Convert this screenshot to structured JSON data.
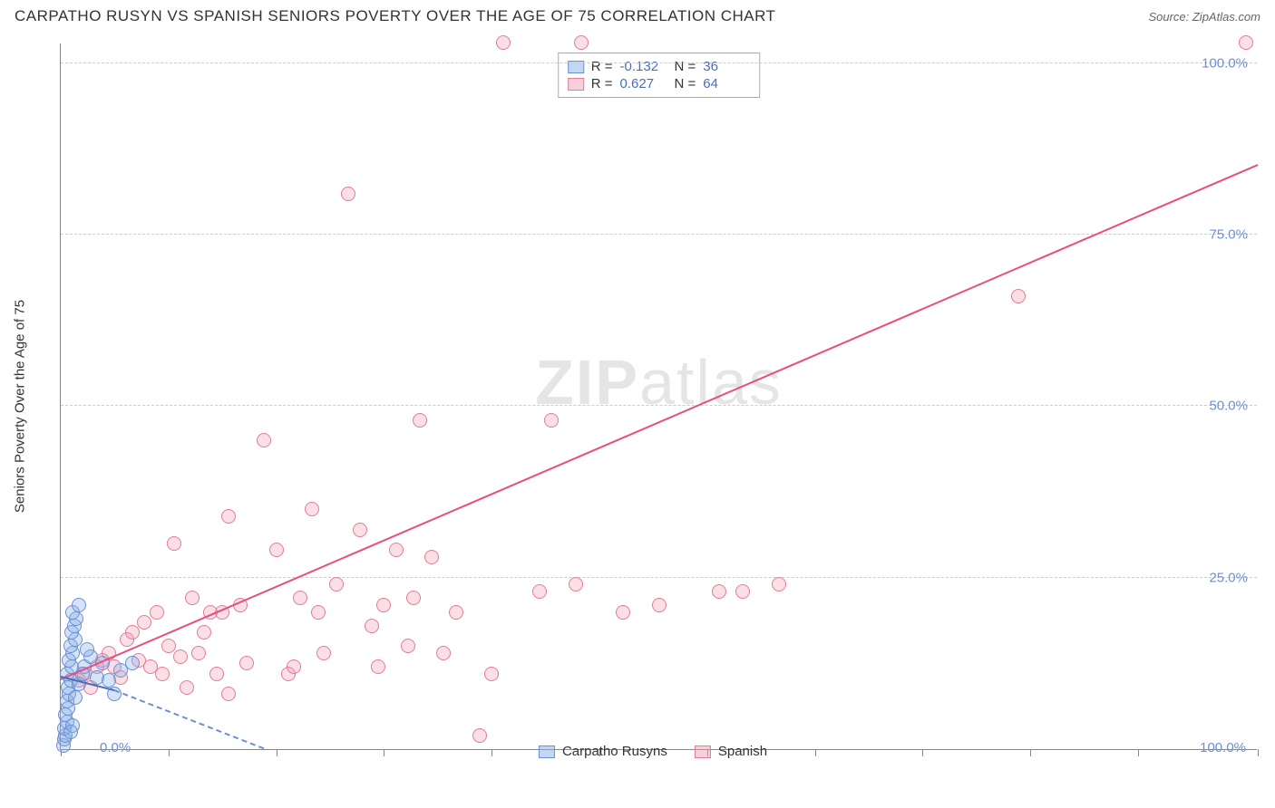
{
  "header": {
    "title": "CARPATHO RUSYN VS SPANISH SENIORS POVERTY OVER THE AGE OF 75 CORRELATION CHART",
    "source": "Source: ZipAtlas.com"
  },
  "chart": {
    "type": "scatter",
    "ylabel": "Seniors Poverty Over the Age of 75",
    "xlim": [
      0,
      100
    ],
    "ylim": [
      0,
      103
    ],
    "xtick_positions": [
      0,
      9,
      18,
      27,
      36,
      45,
      54,
      63,
      72,
      81,
      90,
      100
    ],
    "xtick_label_left": "0.0%",
    "xtick_label_right": "100.0%",
    "yticks": [
      25,
      50,
      75,
      100
    ],
    "ytick_labels": [
      "25.0%",
      "50.0%",
      "75.0%",
      "100.0%"
    ],
    "background_color": "#ffffff",
    "grid_color": "#cccccc",
    "axis_color": "#888888",
    "watermark": {
      "text_bold": "ZIP",
      "text_light": "atlas"
    },
    "series": {
      "carpatho": {
        "label": "Carpatho Rusyns",
        "marker_color_fill": "rgba(135,175,230,0.35)",
        "marker_color_stroke": "#6b8fd6",
        "marker_size": 16,
        "r": "-0.132",
        "n": "36",
        "trend": {
          "x1": 0,
          "y1": 10.5,
          "x2": 4.5,
          "y2": 8.5,
          "dash_to_x": 17,
          "dash_to_y": 0
        },
        "points": [
          {
            "x": 0.2,
            "y": 0.5
          },
          {
            "x": 0.3,
            "y": 1.5
          },
          {
            "x": 0.4,
            "y": 2.0
          },
          {
            "x": 0.3,
            "y": 3.0
          },
          {
            "x": 0.5,
            "y": 4.0
          },
          {
            "x": 0.4,
            "y": 5.0
          },
          {
            "x": 0.6,
            "y": 6.0
          },
          {
            "x": 0.5,
            "y": 7.0
          },
          {
            "x": 0.7,
            "y": 8.0
          },
          {
            "x": 0.6,
            "y": 9.0
          },
          {
            "x": 0.8,
            "y": 10.0
          },
          {
            "x": 0.5,
            "y": 11.0
          },
          {
            "x": 0.9,
            "y": 12.0
          },
          {
            "x": 0.7,
            "y": 13.0
          },
          {
            "x": 1.0,
            "y": 14.0
          },
          {
            "x": 0.8,
            "y": 15.0
          },
          {
            "x": 1.2,
            "y": 16.0
          },
          {
            "x": 0.9,
            "y": 17.0
          },
          {
            "x": 1.1,
            "y": 18.0
          },
          {
            "x": 1.3,
            "y": 19.0
          },
          {
            "x": 1.0,
            "y": 20.0
          },
          {
            "x": 1.5,
            "y": 21.0
          },
          {
            "x": 1.2,
            "y": 7.5
          },
          {
            "x": 2.0,
            "y": 12.0
          },
          {
            "x": 1.5,
            "y": 9.5
          },
          {
            "x": 2.5,
            "y": 13.5
          },
          {
            "x": 1.8,
            "y": 11.0
          },
          {
            "x": 3.0,
            "y": 10.5
          },
          {
            "x": 2.2,
            "y": 14.5
          },
          {
            "x": 3.5,
            "y": 12.5
          },
          {
            "x": 4.0,
            "y": 10.0
          },
          {
            "x": 5.0,
            "y": 11.5
          },
          {
            "x": 6.0,
            "y": 12.5
          },
          {
            "x": 4.5,
            "y": 8.0
          },
          {
            "x": 1.0,
            "y": 3.5
          },
          {
            "x": 0.8,
            "y": 2.5
          }
        ]
      },
      "spanish": {
        "label": "Spanish",
        "marker_color_fill": "rgba(240,150,170,0.3)",
        "marker_color_stroke": "#e57a9a",
        "marker_size": 16,
        "r": "0.627",
        "n": "64",
        "trend": {
          "x1": 0,
          "y1": 10,
          "x2": 100,
          "y2": 85,
          "color": "#e84e7e"
        },
        "points": [
          {
            "x": 1.5,
            "y": 10
          },
          {
            "x": 2,
            "y": 11
          },
          {
            "x": 2.5,
            "y": 9
          },
          {
            "x": 3,
            "y": 12
          },
          {
            "x": 3.5,
            "y": 13
          },
          {
            "x": 4,
            "y": 14
          },
          {
            "x": 4.5,
            "y": 12
          },
          {
            "x": 5,
            "y": 10.5
          },
          {
            "x": 5.5,
            "y": 16
          },
          {
            "x": 6,
            "y": 17
          },
          {
            "x": 6.5,
            "y": 13
          },
          {
            "x": 7,
            "y": 18.5
          },
          {
            "x": 7.5,
            "y": 12
          },
          {
            "x": 8,
            "y": 20
          },
          {
            "x": 8.5,
            "y": 11
          },
          {
            "x": 9,
            "y": 15
          },
          {
            "x": 9.5,
            "y": 30
          },
          {
            "x": 10,
            "y": 13.5
          },
          {
            "x": 10.5,
            "y": 9
          },
          {
            "x": 11,
            "y": 22
          },
          {
            "x": 11.5,
            "y": 14
          },
          {
            "x": 12,
            "y": 17
          },
          {
            "x": 13,
            "y": 11
          },
          {
            "x": 13.5,
            "y": 20
          },
          {
            "x": 14,
            "y": 34
          },
          {
            "x": 15,
            "y": 21
          },
          {
            "x": 15.5,
            "y": 12.5
          },
          {
            "x": 12.5,
            "y": 20
          },
          {
            "x": 17,
            "y": 45
          },
          {
            "x": 18,
            "y": 29
          },
          {
            "x": 19,
            "y": 11
          },
          {
            "x": 19.5,
            "y": 12
          },
          {
            "x": 20,
            "y": 22
          },
          {
            "x": 21,
            "y": 35
          },
          {
            "x": 21.5,
            "y": 20
          },
          {
            "x": 22,
            "y": 14
          },
          {
            "x": 23,
            "y": 24
          },
          {
            "x": 24,
            "y": 81
          },
          {
            "x": 25,
            "y": 32
          },
          {
            "x": 26,
            "y": 18
          },
          {
            "x": 26.5,
            "y": 12
          },
          {
            "x": 27,
            "y": 21
          },
          {
            "x": 28,
            "y": 29
          },
          {
            "x": 29,
            "y": 15
          },
          {
            "x": 29.5,
            "y": 22
          },
          {
            "x": 30,
            "y": 48
          },
          {
            "x": 31,
            "y": 28
          },
          {
            "x": 32,
            "y": 14
          },
          {
            "x": 33,
            "y": 20
          },
          {
            "x": 35,
            "y": 2
          },
          {
            "x": 36,
            "y": 11
          },
          {
            "x": 37,
            "y": 103
          },
          {
            "x": 40,
            "y": 23
          },
          {
            "x": 41,
            "y": 48
          },
          {
            "x": 43.5,
            "y": 103
          },
          {
            "x": 43,
            "y": 24
          },
          {
            "x": 47,
            "y": 20
          },
          {
            "x": 50,
            "y": 21
          },
          {
            "x": 55,
            "y": 23
          },
          {
            "x": 57,
            "y": 23
          },
          {
            "x": 60,
            "y": 24
          },
          {
            "x": 80,
            "y": 66
          },
          {
            "x": 99,
            "y": 103
          },
          {
            "x": 14,
            "y": 8
          }
        ]
      }
    },
    "legend_bottom": [
      {
        "swatch": "blue",
        "label": "Carpatho Rusyns"
      },
      {
        "swatch": "pink",
        "label": "Spanish"
      }
    ]
  }
}
